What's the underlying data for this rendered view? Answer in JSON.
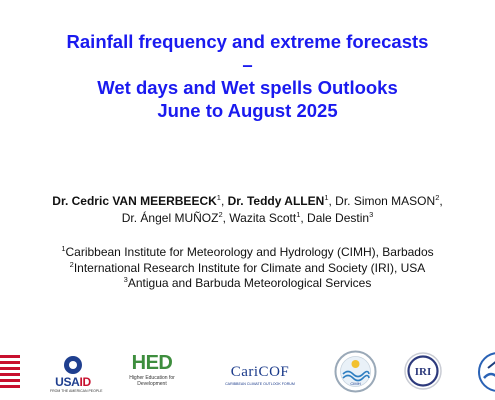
{
  "title": {
    "line1": "Rainfall frequency and extreme forecasts",
    "line2": "–",
    "line3": "Wet days and Wet spells Outlooks",
    "line4": "June to August 2025"
  },
  "authors": {
    "a1_name": "Dr. Cedric VAN MEERBEECK",
    "a1_sup": "1",
    "a2_name": "Dr. Teddy ALLEN",
    "a2_sup": "1",
    "a3_name": "Dr. Simon MASON",
    "a3_sup": "2",
    "a4_name": "Dr. Ángel MUÑOZ",
    "a4_sup": "2",
    "a5_name": "Wazita Scott",
    "a5_sup": "1",
    "a6_name": "Dale Destin",
    "a6_sup": "3"
  },
  "affiliations": [
    {
      "num": "1",
      "text": "Caribbean Institute for Meteorology and Hydrology (CIMH), Barbados"
    },
    {
      "num": "2",
      "text": "International Research Institute for Climate and Society (IRI), USA"
    },
    {
      "num": "3",
      "text": "Antigua and Barbuda Meteorological Services"
    }
  ],
  "logos": {
    "usaid_word_a": "USA",
    "usaid_word_b": "ID",
    "usaid_tag": "FROM THE AMERICAN PEOPLE",
    "hed_word": "HED",
    "hed_tag": "Higher Education for Development",
    "caricof_word": "CariCOF",
    "caricof_tag": "CARIBBEAN CLIMATE OUTLOOK FORUM",
    "cimh_text": "CIMH",
    "iri_text": "IRI"
  },
  "colors": {
    "title": "#1a1aef",
    "usaid_blue": "#1f3f8f",
    "usaid_red": "#c8102e",
    "hed_green": "#3e8e3e",
    "caricof_blue": "#1a3a8a"
  }
}
